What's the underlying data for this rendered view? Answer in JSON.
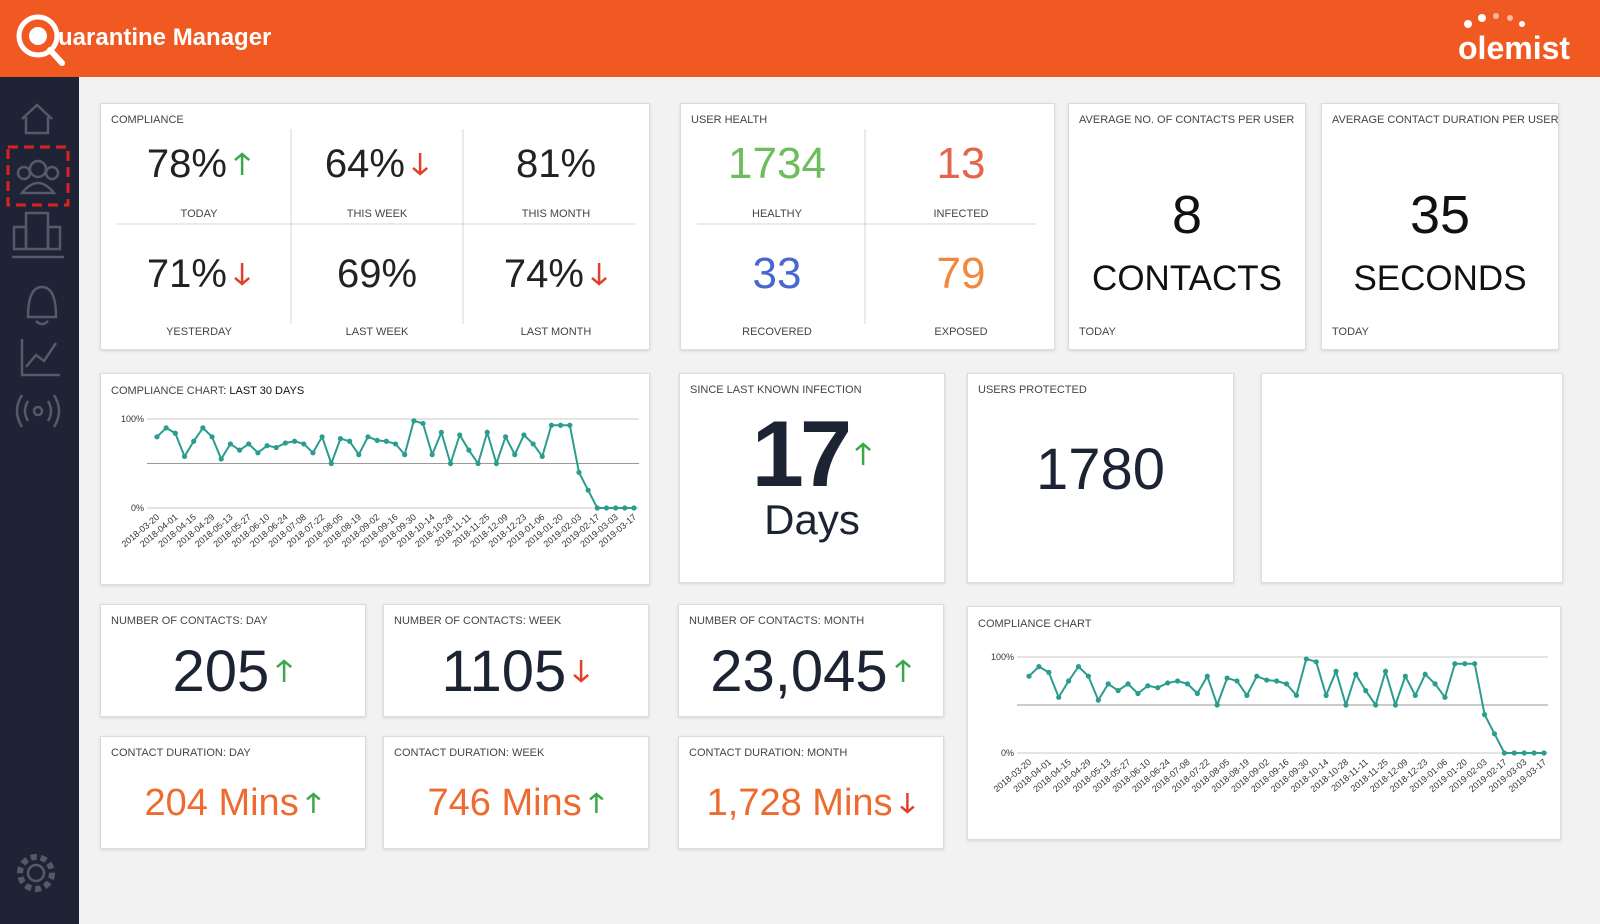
{
  "header": {
    "title": "uarantine Manager",
    "brand": "olemist"
  },
  "compliance": {
    "title": "COMPLIANCE",
    "items": [
      {
        "value": "78%",
        "label": "TODAY",
        "trend": "up"
      },
      {
        "value": "64%",
        "label": "THIS WEEK",
        "trend": "down"
      },
      {
        "value": "81%",
        "label": "THIS MONTH"
      },
      {
        "value": "71%",
        "label": "YESTERDAY",
        "trend": "down"
      },
      {
        "value": "69%",
        "label": "LAST WEEK"
      },
      {
        "value": "74%",
        "label": "LAST MONTH",
        "trend": "down"
      }
    ]
  },
  "user_health": {
    "title": "USER HEALTH",
    "items": [
      {
        "value": "1734",
        "label": "HEALTHY",
        "color": "#6cbd5c"
      },
      {
        "value": "13",
        "label": "INFECTED",
        "color": "#e5654c"
      },
      {
        "value": "33",
        "label": "RECOVERED",
        "color": "#4a67d0"
      },
      {
        "value": "79",
        "label": "EXPOSED",
        "color": "#f0883e"
      }
    ]
  },
  "avg_contacts": {
    "title": "AVERAGE NO. OF CONTACTS PER USER",
    "value": "8",
    "unit": "CONTACTS",
    "footer": "TODAY"
  },
  "avg_duration": {
    "title": "AVERAGE CONTACT DURATION PER USER",
    "value": "35",
    "unit": "SECONDS",
    "footer": "TODAY"
  },
  "since_infection": {
    "title": "SINCE LAST KNOWN INFECTION",
    "value": "17",
    "unit": "Days",
    "trend": "up"
  },
  "users_protected": {
    "title": "USERS PROTECTED",
    "value": "1780"
  },
  "contacts": [
    {
      "title": "NUMBER OF CONTACTS: DAY",
      "value": "205",
      "trend": "up"
    },
    {
      "title": "NUMBER OF CONTACTS: WEEK",
      "value": "1105",
      "trend": "down"
    },
    {
      "title": "NUMBER OF CONTACTS: MONTH",
      "value": "23,045",
      "trend": "up"
    }
  ],
  "durations": [
    {
      "title": "CONTACT DURATION: DAY",
      "value": "204 Mins",
      "trend": "up"
    },
    {
      "title": "CONTACT DURATION: WEEK",
      "value": "746 Mins",
      "trend": "up"
    },
    {
      "title": "CONTACT DURATION: MONTH",
      "value": "1,728 Mins",
      "trend": "down"
    }
  ],
  "charts": [
    {
      "type": "line",
      "title": "COMPLIANCE CHART",
      "subtitle": ": LAST 30 DAYS",
      "color": "#2a9d8f",
      "categories": [
        "2018-03-20",
        null,
        "2018-04-01",
        null,
        "2018-04-15",
        null,
        "2018-04-29",
        null,
        "2018-05-13",
        null,
        "2018-05-27",
        null,
        "2018-06-10",
        null,
        "2018-06-24",
        null,
        "2018-07-08",
        null,
        "2018-07-22",
        null,
        "2018-08-05",
        null,
        "2018-08-19",
        null,
        "2018-09-02",
        null,
        "2018-09-16",
        null,
        "2018-09-30",
        null,
        "2018-10-14",
        null,
        "2018-10-28",
        null,
        "2018-11-11",
        null,
        "2018-11-25",
        null,
        "2018-12-09",
        null,
        "2018-12-23",
        null,
        "2019-01-06",
        null,
        "2019-01-20",
        null,
        "2019-02-03",
        null,
        "2019-02-17",
        null,
        "2019-03-03",
        null,
        "2019-03-17"
      ],
      "values": [
        80,
        90,
        84,
        58,
        75,
        90,
        80,
        55,
        72,
        65,
        72,
        62,
        70,
        68,
        73,
        75,
        72,
        62,
        80,
        50,
        78,
        75,
        60,
        80,
        76,
        75,
        72,
        60,
        98,
        95,
        60,
        85,
        50,
        82,
        65,
        50,
        85,
        50,
        80,
        60,
        82,
        72,
        58,
        93,
        93,
        93,
        40,
        20,
        0,
        0,
        0,
        0,
        0
      ],
      "ylim": [
        0,
        100
      ],
      "yticks": [
        {
          "value": 0,
          "label": "0%"
        },
        {
          "value": 100,
          "label": "100%"
        }
      ],
      "minor_grid": [
        50
      ]
    },
    {
      "type": "line",
      "title": "COMPLIANCE CHART",
      "color": "#2a9d8f",
      "categories": [
        "2018-03-20",
        null,
        "2018-04-01",
        null,
        "2018-04-15",
        null,
        "2018-04-29",
        null,
        "2018-05-13",
        null,
        "2018-05-27",
        null,
        "2018-06-10",
        null,
        "2018-06-24",
        null,
        "2018-07-08",
        null,
        "2018-07-22",
        null,
        "2018-08-05",
        null,
        "2018-08-19",
        null,
        "2018-09-02",
        null,
        "2018-09-16",
        null,
        "2018-09-30",
        null,
        "2018-10-14",
        null,
        "2018-10-28",
        null,
        "2018-11-11",
        null,
        "2018-11-25",
        null,
        "2018-12-09",
        null,
        "2018-12-23",
        null,
        "2019-01-06",
        null,
        "2019-01-20",
        null,
        "2019-02-03",
        null,
        "2019-02-17",
        null,
        "2019-03-03",
        null,
        "2019-03-17"
      ],
      "values": [
        80,
        90,
        84,
        58,
        75,
        90,
        80,
        55,
        72,
        65,
        72,
        62,
        70,
        68,
        73,
        75,
        72,
        62,
        80,
        50,
        78,
        75,
        60,
        80,
        76,
        75,
        72,
        60,
        98,
        95,
        60,
        85,
        50,
        82,
        65,
        50,
        85,
        50,
        80,
        60,
        82,
        72,
        58,
        93,
        93,
        93,
        40,
        20,
        0,
        0,
        0,
        0,
        0
      ],
      "ylim": [
        0,
        100
      ],
      "yticks": [
        {
          "value": 0,
          "label": "0%"
        },
        {
          "value": 100,
          "label": "100%"
        }
      ],
      "minor_grid": [
        50
      ]
    }
  ]
}
